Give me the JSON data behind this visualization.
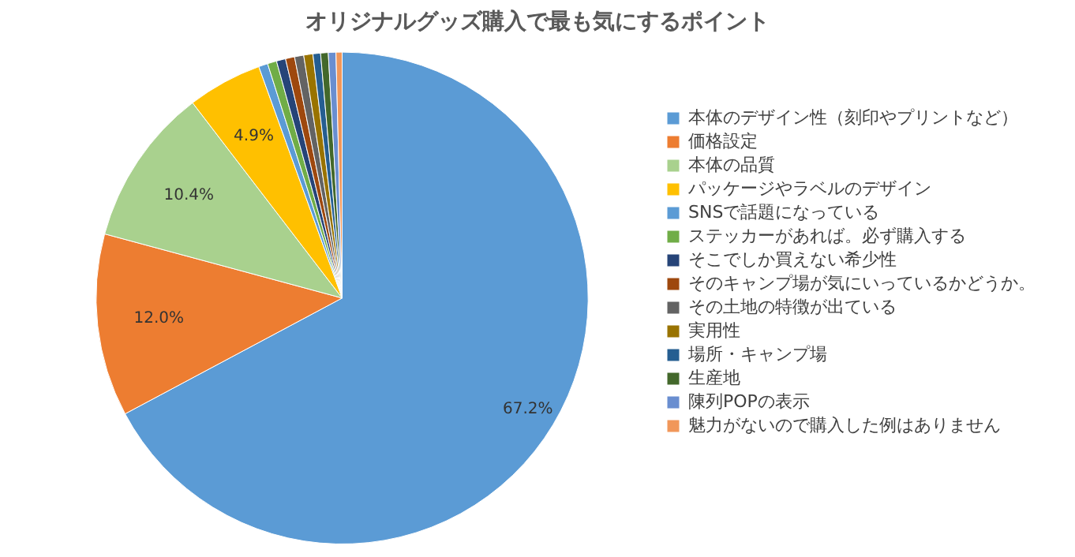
{
  "chart_data": {
    "type": "pie",
    "title": "オリジナルグッズ購入で最も気にするポイント",
    "categories": [
      "本体のデザイン性（刻印やプリントなど）",
      "価格設定",
      "本体の品質",
      "パッケージやラベルのデザイン",
      "SNSで話題になっている",
      "ステッカーがあれば。必ず購入する",
      "そこでしか買えない希少性",
      "そのキャンプ場が気にいっているかどうか。",
      "その土地の特徴が出ている",
      "実用性",
      "場所・キャンプ場",
      "生産地",
      "陳列POPの表示",
      "魅力がないので購入した例はありません"
    ],
    "values": [
      67.2,
      12.0,
      10.4,
      4.9,
      0.6,
      0.6,
      0.6,
      0.6,
      0.6,
      0.6,
      0.5,
      0.5,
      0.5,
      0.4
    ],
    "value_labels": [
      "67.2%",
      "12.0%",
      "10.4%",
      "4.9%",
      null,
      null,
      null,
      null,
      null,
      null,
      null,
      null,
      null,
      null
    ],
    "colors": [
      "#5b9bd5",
      "#ed7d31",
      "#a9d18e",
      "#ffc000",
      "#5b9bd5",
      "#70ad47",
      "#264478",
      "#9e480e",
      "#636363",
      "#997300",
      "#255e91",
      "#43682b",
      "#698ed0",
      "#f1975a"
    ],
    "legend": "right"
  }
}
